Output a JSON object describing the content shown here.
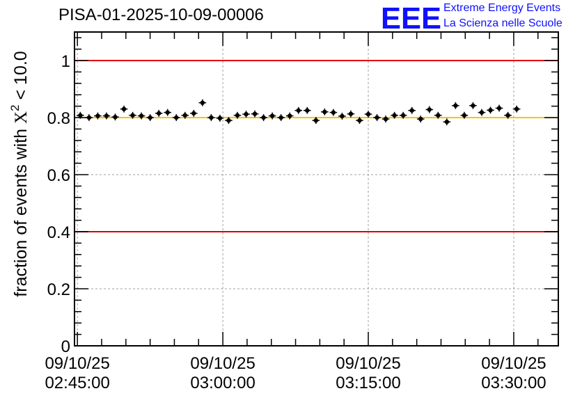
{
  "header": {
    "title": "PISA-01-2025-10-09-00006",
    "logo_letters": "EEE",
    "logo_line1": "Extreme Energy Events",
    "logo_line2": "La Scienza nelle Scuole"
  },
  "colors": {
    "limit_line": "#e00000",
    "reference_line": "#ffc000",
    "logo": "#1010ff",
    "markers": "#000000",
    "grid": "#a0a0a0"
  },
  "chart_data": {
    "type": "scatter",
    "title": "PISA-01-2025-10-09-00006",
    "xlabel": "",
    "ylabel_prefix": "fraction of events with ",
    "ylabel_symbol": "X",
    "ylabel_exponent": "2",
    "ylabel_suffix": " < 10.0",
    "x_unit": "minutes since 09/10/25 02:45:00",
    "xlim": [
      -0.3,
      49.6
    ],
    "ylim": [
      0,
      1.1
    ],
    "y_ticks": [
      0,
      0.2,
      0.4,
      0.6,
      0.8,
      1
    ],
    "y_tick_labels": [
      "0",
      "0.2",
      "0.4",
      "0.6",
      "0.8",
      "1"
    ],
    "x_ticks": [
      0,
      15,
      30,
      45
    ],
    "x_tick_labels": [
      [
        "09/10/25",
        "02:45:00"
      ],
      [
        "09/10/25",
        "03:00:00"
      ],
      [
        "09/10/25",
        "03:15:00"
      ],
      [
        "09/10/25",
        "03:30:00"
      ]
    ],
    "grid": true,
    "reference_lines": [
      {
        "y": 1.0,
        "color": "#e00000"
      },
      {
        "y": 0.4,
        "color": "#e00000"
      },
      {
        "y": 0.8,
        "color": "#ffc000"
      }
    ],
    "series": [
      {
        "name": "fraction",
        "x_step": 0.9,
        "x_start": 0.3,
        "y_error": 0.012,
        "x_error": 0.38,
        "values": [
          0.808,
          0.8,
          0.806,
          0.806,
          0.802,
          0.83,
          0.808,
          0.806,
          0.8,
          0.815,
          0.818,
          0.8,
          0.808,
          0.815,
          0.852,
          0.8,
          0.798,
          0.79,
          0.808,
          0.812,
          0.813,
          0.8,
          0.806,
          0.8,
          0.806,
          0.825,
          0.825,
          0.79,
          0.82,
          0.818,
          0.805,
          0.813,
          0.79,
          0.812,
          0.8,
          0.795,
          0.808,
          0.808,
          0.825,
          0.795,
          0.828,
          0.808,
          0.785,
          0.842,
          0.808,
          0.842,
          0.818,
          0.826,
          0.833,
          0.808,
          0.83
        ]
      }
    ]
  }
}
